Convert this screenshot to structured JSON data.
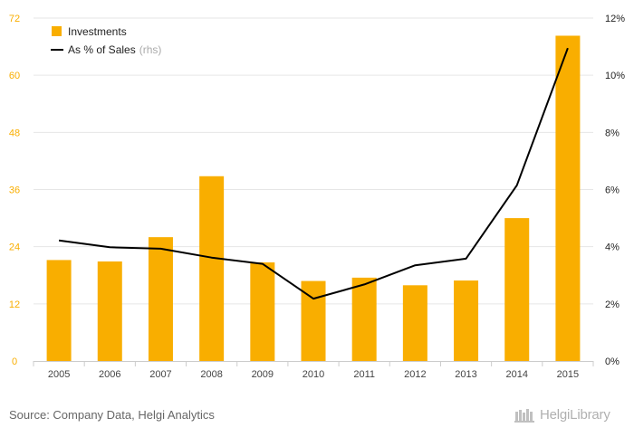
{
  "chart_data": {
    "type": "bar",
    "categories": [
      "2005",
      "2006",
      "2007",
      "2008",
      "2009",
      "2010",
      "2011",
      "2012",
      "2013",
      "2014",
      "2015"
    ],
    "series": [
      {
        "name": "Investments",
        "type": "bar",
        "axis": "left",
        "color": "#F9AE00",
        "values": [
          21.2,
          20.9,
          26.0,
          38.8,
          20.7,
          16.8,
          17.5,
          15.9,
          16.9,
          30.0,
          68.3
        ]
      },
      {
        "name": "As % of Sales",
        "legend_suffix": "(rhs)",
        "type": "line",
        "axis": "right",
        "color": "#000000",
        "values": [
          4.22,
          3.98,
          3.93,
          3.62,
          3.4,
          2.18,
          2.68,
          3.35,
          3.58,
          6.15,
          10.95
        ]
      }
    ],
    "y_left": {
      "ylim": [
        0,
        72
      ],
      "ticks": [
        "0",
        "12",
        "24",
        "36",
        "48",
        "60",
        "72"
      ],
      "color": "#F9AE00"
    },
    "y_right": {
      "ylim": [
        0,
        12
      ],
      "ticks": [
        "0%",
        "2%",
        "4%",
        "6%",
        "8%",
        "10%",
        "12%"
      ]
    },
    "grid": true,
    "legend_position": "top-left"
  },
  "source": "Source: Company Data, Helgi Analytics",
  "logo": "HelgiLibrary"
}
